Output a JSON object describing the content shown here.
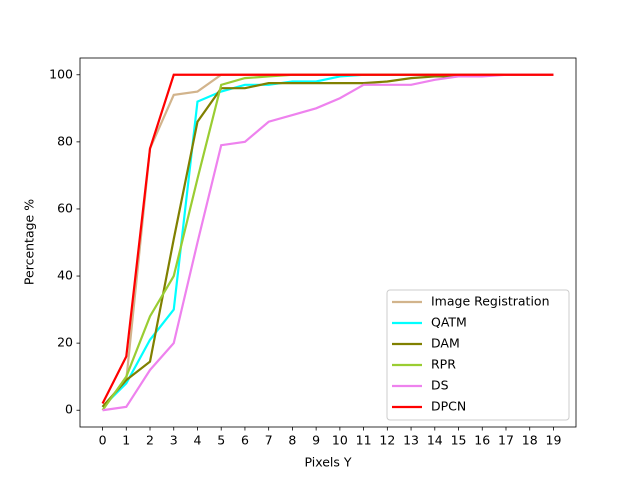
{
  "chart_data": {
    "type": "line",
    "x_label": "Pixels Y",
    "y_label": "Percentage %",
    "x": [
      0,
      1,
      2,
      3,
      4,
      5,
      6,
      7,
      8,
      9,
      10,
      11,
      12,
      13,
      14,
      15,
      16,
      17,
      18,
      19
    ],
    "series": [
      {
        "name": "Image Registration",
        "color": "#d2b48c",
        "values": [
          1,
          9,
          78,
          94,
          95,
          100,
          100,
          100,
          100,
          100,
          100,
          100,
          100,
          100,
          100,
          100,
          100,
          100,
          100,
          100
        ]
      },
      {
        "name": "QATM",
        "color": "#00ffff",
        "values": [
          1,
          8,
          21,
          30,
          92,
          95,
          97,
          97,
          98,
          98,
          99.5,
          100,
          100,
          100,
          100,
          100,
          100,
          100,
          100,
          100
        ]
      },
      {
        "name": "DAM",
        "color": "#808000",
        "values": [
          1,
          9,
          14.5,
          51,
          86,
          96,
          96,
          97.5,
          97.5,
          97.5,
          97.5,
          97.5,
          98,
          99,
          99.5,
          99.5,
          100,
          100,
          100,
          100
        ]
      },
      {
        "name": "RPR",
        "color": "#9acd32",
        "values": [
          0,
          10,
          28,
          40,
          69,
          97,
          99,
          99.5,
          100,
          100,
          100,
          100,
          100,
          100,
          100,
          100,
          100,
          100,
          100,
          100
        ]
      },
      {
        "name": "DS",
        "color": "#ee82ee",
        "values": [
          0,
          1,
          12,
          20,
          50,
          79,
          80,
          86,
          88,
          90,
          93,
          97,
          97,
          97,
          98.5,
          99.5,
          99.5,
          100,
          100,
          100
        ]
      },
      {
        "name": "DPCN",
        "color": "#ff0000",
        "values": [
          2,
          16,
          78,
          100,
          100,
          100,
          100,
          100,
          100,
          100,
          100,
          100,
          100,
          100,
          100,
          100,
          100,
          100,
          100,
          100
        ]
      }
    ],
    "xlim": [
      -0.95,
      19.95
    ],
    "xticks": [
      0,
      1,
      2,
      3,
      4,
      5,
      6,
      7,
      8,
      9,
      10,
      11,
      12,
      13,
      14,
      15,
      16,
      17,
      18,
      19
    ],
    "ylim": [
      -5,
      105
    ],
    "yticks": [
      0,
      20,
      40,
      60,
      80,
      100
    ],
    "grid": false,
    "legend": "lower right"
  }
}
